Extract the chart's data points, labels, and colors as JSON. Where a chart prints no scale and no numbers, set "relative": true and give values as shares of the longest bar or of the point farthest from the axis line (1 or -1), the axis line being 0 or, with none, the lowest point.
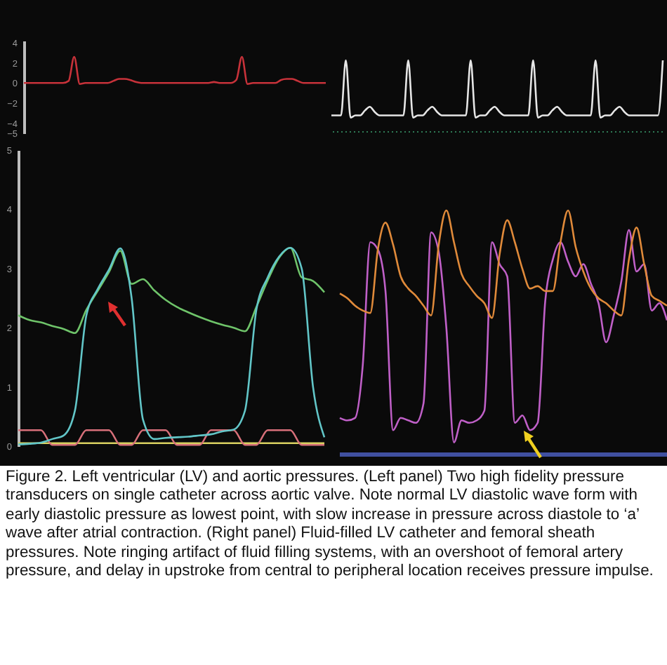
{
  "chart_data": [
    {
      "type": "line",
      "ylim": [
        -5,
        4.2
      ],
      "yticks": [
        4,
        2,
        0,
        -2,
        -4,
        -5
      ],
      "categories": [
        null,
        null,
        null,
        null,
        null,
        null,
        null,
        null,
        null,
        null,
        null,
        null,
        null,
        null,
        null,
        null,
        null,
        null,
        null,
        null,
        null,
        null,
        null,
        null,
        null,
        null,
        null,
        null,
        null,
        null,
        null,
        null,
        null,
        null,
        null,
        null,
        null,
        null,
        null,
        null,
        null,
        null,
        null,
        null,
        null,
        null,
        null,
        null,
        null,
        null,
        null,
        null,
        null,
        null,
        null
      ],
      "series": [
        {
          "color": "#c8323a",
          "values": [
            0,
            0,
            0,
            0,
            0,
            0,
            0,
            0,
            0.2,
            2.6,
            -0.1,
            0,
            0,
            0,
            0,
            0,
            0.2,
            0.4,
            0.4,
            0.3,
            0.1,
            0,
            0,
            0,
            0,
            0,
            0,
            0,
            0,
            0,
            0,
            0,
            0,
            0,
            0.1,
            0,
            0,
            0,
            0.3,
            2.6,
            -0.1,
            0,
            0,
            0,
            0,
            0,
            0.3,
            0.4,
            0.4,
            0.2,
            0,
            0,
            0,
            0,
            0
          ]
        }
      ]
    },
    {
      "type": "line",
      "relative": true,
      "categories": [
        null,
        null,
        null,
        null,
        null,
        null,
        null,
        null,
        null,
        null,
        null,
        null,
        null,
        null,
        null,
        null,
        null,
        null,
        null,
        null,
        null,
        null,
        null,
        null,
        null,
        null,
        null,
        null,
        null,
        null,
        null,
        null,
        null,
        null,
        null,
        null,
        null,
        null,
        null,
        null,
        null,
        null,
        null,
        null,
        null,
        null,
        null,
        null,
        null,
        null,
        null,
        null,
        null,
        null,
        null,
        null,
        null,
        null,
        null,
        null,
        null,
        null,
        null,
        null,
        null,
        null,
        null,
        null,
        null,
        null
      ],
      "ref_lines": [
        {
          "axis": "y",
          "value": 0,
          "color": "#2f7a55",
          "line_style": "dotted"
        }
      ],
      "series": [
        {
          "color": "#e6e6e6",
          "values": [
            0.23,
            0.23,
            0.23,
            1,
            0.2,
            0.23,
            0.23,
            0.3,
            0.35,
            0.28,
            0.23,
            0.23,
            0.23,
            0.23,
            0.23,
            0.23,
            1,
            0.2,
            0.23,
            0.23,
            0.3,
            0.35,
            0.28,
            0.23,
            0.23,
            0.23,
            0.23,
            0.23,
            0.23,
            1,
            0.2,
            0.23,
            0.23,
            0.3,
            0.35,
            0.28,
            0.23,
            0.23,
            0.23,
            0.23,
            0.23,
            0.23,
            1,
            0.2,
            0.23,
            0.23,
            0.3,
            0.35,
            0.28,
            0.23,
            0.23,
            0.23,
            0.23,
            0.23,
            0.23,
            1,
            0.2,
            0.23,
            0.23,
            0.3,
            0.35,
            0.28,
            0.23,
            0.23,
            0.23,
            0.23,
            0.23,
            0.23,
            0.23,
            1
          ]
        }
      ]
    },
    {
      "type": "line",
      "ylim": [
        0,
        5
      ],
      "yticks": [
        0,
        1,
        2,
        3,
        4,
        5
      ],
      "categories": [
        null,
        null,
        null,
        null,
        null,
        null,
        null,
        null,
        null,
        null,
        null,
        null,
        null,
        null,
        null,
        null,
        null,
        null,
        null,
        null,
        null,
        null,
        null,
        null,
        null,
        null,
        null,
        null
      ],
      "series": [
        {
          "color": "#d8d060",
          "values": [
            0.05,
            0.05,
            0.05,
            0.05,
            0.05,
            0.05,
            0.05,
            0.05,
            0.05,
            0.05,
            0.05,
            0.05,
            0.05,
            0.05,
            0.05,
            0.05,
            0.05,
            0.05,
            0.05,
            0.05,
            0.05,
            0.05,
            0.05,
            0.05,
            0.05,
            0.05,
            0.05,
            0.05
          ]
        },
        {
          "color": "#d8707a",
          "values": [
            0.27,
            0.27,
            0.27,
            0.02,
            0.02,
            0.02,
            0.27,
            0.27,
            0.27,
            0.02,
            0.02,
            0.27,
            0.27,
            0.27,
            0.02,
            0.02,
            0.02,
            0.27,
            0.27,
            0.27,
            0.02,
            0.02,
            0.27,
            0.27,
            0.27,
            0.02,
            0.02,
            0.02
          ]
        },
        {
          "color": "#6fc46a",
          "values": [
            2.21,
            2.13,
            2.09,
            2.03,
            1.98,
            1.91,
            2.3,
            2.62,
            2.94,
            3.3,
            2.74,
            2.82,
            2.63,
            2.47,
            2.35,
            2.26,
            2.18,
            2.11,
            2.05,
            2.0,
            1.94,
            2.35,
            2.8,
            3.18,
            3.35,
            2.85,
            2.79,
            2.6
          ]
        },
        {
          "color": "#62c6c8",
          "values": [
            0.03,
            0.04,
            0.06,
            0.12,
            0.18,
            0.6,
            2.2,
            2.65,
            2.98,
            3.34,
            2.5,
            0.45,
            0.12,
            0.14,
            0.15,
            0.16,
            0.18,
            0.2,
            0.25,
            0.28,
            0.6,
            2.3,
            2.85,
            3.2,
            3.35,
            3.0,
            1.0,
            0.15
          ]
        }
      ]
    },
    {
      "type": "line",
      "relative": true,
      "categories": [
        null,
        null,
        null,
        null,
        null,
        null,
        null,
        null,
        null,
        null,
        null,
        null,
        null,
        null,
        null,
        null,
        null,
        null,
        null,
        null,
        null,
        null,
        null,
        null,
        null,
        null,
        null,
        null,
        null,
        null,
        null,
        null,
        null,
        null,
        null,
        null,
        null,
        null,
        null,
        null,
        null,
        null,
        null,
        null
      ],
      "ref_lines": [
        {
          "axis": "y",
          "value": 0,
          "color": "#4050a0"
        }
      ],
      "series": [
        {
          "color": "#c060c8",
          "values": [
            0.15,
            0.14,
            0.15,
            0.36,
            0.87,
            0.84,
            0.67,
            0.1,
            0.15,
            0.14,
            0.13,
            0.21,
            0.91,
            0.83,
            0.52,
            0.05,
            0.14,
            0.13,
            0.14,
            0.18,
            0.87,
            0.78,
            0.73,
            0.13,
            0.16,
            0.1,
            0.13,
            0.63,
            0.8,
            0.87,
            0.79,
            0.73,
            0.78,
            0.7,
            0.62,
            0.46,
            0.57,
            0.71,
            0.92,
            0.75,
            0.78,
            0.59,
            0.62,
            0.55
          ]
        },
        {
          "color": "#e08a3a",
          "values": [
            0.66,
            0.64,
            0.61,
            0.59,
            0.58,
            0.84,
            0.95,
            0.86,
            0.73,
            0.68,
            0.65,
            0.61,
            0.57,
            0.86,
            1.0,
            0.87,
            0.74,
            0.69,
            0.65,
            0.62,
            0.56,
            0.82,
            0.96,
            0.87,
            0.76,
            0.68,
            0.69,
            0.67,
            0.67,
            0.87,
            1.0,
            0.85,
            0.75,
            0.68,
            0.64,
            0.62,
            0.59,
            0.57,
            0.8,
            0.93,
            0.78,
            0.65,
            0.63,
            0.61
          ]
        }
      ]
    },
    {
      "type": "other",
      "annotations": [
        "Figure 2. Left ventricular (LV) and aortic pressures. (Left panel) Two high fidelity pressure transducers on single catheter across aortic valve. Note normal LV diastolic wave form with early diastolic pressure as lowest point, with slow increase in pressure across diastole to ‘a’ wave after atrial contraction. (Right panel) Fluid-filled LV catheter and femoral sheath pressures. Note ringing artifact of fluid filling systems, with an overshoot of femoral artery pressure, and delay in upstroke from central to peripheral location receives pressure impulse."
      ]
    }
  ]
}
